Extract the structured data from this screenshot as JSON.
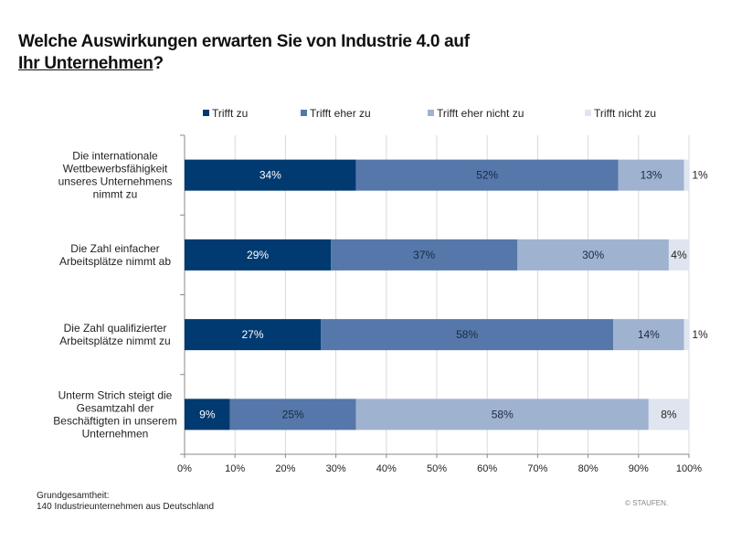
{
  "title_line1": "Welche Auswirkungen erwarten Sie von Industrie 4.0 auf",
  "title_line2_underlined": "Ihr Unternehmen",
  "title_line2_suffix": "?",
  "footnote": {
    "line1": "Grundgesamtheit:",
    "line2": "140 Industrieunternehmen aus Deutschland"
  },
  "copyright": "© STAUFEN.",
  "chart_data": {
    "type": "bar",
    "orientation": "horizontal",
    "stacked": true,
    "categories": [
      [
        "Die internationale",
        "Wettbewerbsfähigkeit",
        "unseres Unternehmens",
        "nimmt zu"
      ],
      [
        "Die Zahl einfacher",
        "Arbeitsplätze nimmt ab"
      ],
      [
        "Die Zahl qualifizierter",
        "Arbeitsplätze nimmt zu"
      ],
      [
        "Unterm Strich steigt die",
        "Gesamtzahl der",
        "Beschäftigten in unserem",
        "Unternehmen"
      ]
    ],
    "series": [
      {
        "name": "Trifft zu",
        "color": "#003a70",
        "label_color": "#ffffff",
        "values": [
          34,
          29,
          27,
          9
        ]
      },
      {
        "name": "Trifft eher zu",
        "color": "#5677a9",
        "label_color": "#1a2a44",
        "values": [
          52,
          37,
          58,
          25
        ]
      },
      {
        "name": "Trifft eher nicht zu",
        "color": "#9fb2d0",
        "label_color": "#1a2a44",
        "values": [
          13,
          30,
          14,
          58
        ]
      },
      {
        "name": "Trifft nicht zu",
        "color": "#dfe5ef",
        "label_color": "#222222",
        "values": [
          1,
          4,
          1,
          8
        ]
      }
    ],
    "xlim": [
      0,
      100
    ],
    "xticks": [
      "0%",
      "10%",
      "20%",
      "30%",
      "40%",
      "50%",
      "60%",
      "70%",
      "80%",
      "90%",
      "100%"
    ],
    "grid": true,
    "legend": "top",
    "value_suffix": "%"
  }
}
